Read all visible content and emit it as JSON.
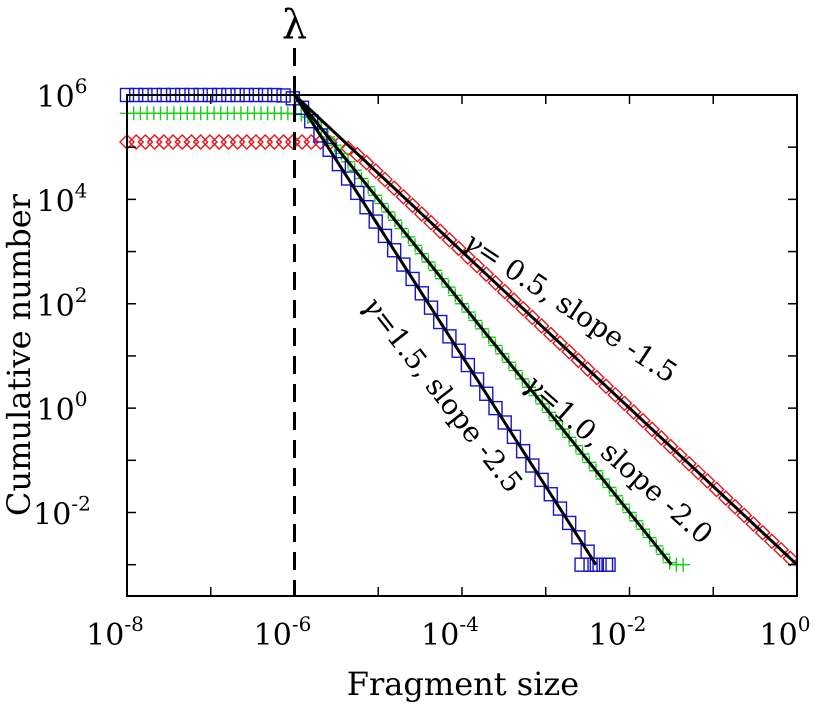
{
  "chart_data": {
    "type": "scatter",
    "xscale": "log",
    "yscale": "log",
    "xlabel": "Fragment size",
    "ylabel": "Cumulative number",
    "xlim_exp": [
      -8,
      0
    ],
    "ylim_exp": [
      -3.6,
      6
    ],
    "x_ticks": [
      {
        "base": "10",
        "exp": "-8",
        "value_exp": -8
      },
      {
        "base": "10",
        "exp": "-6",
        "value_exp": -6
      },
      {
        "base": "10",
        "exp": "-4",
        "value_exp": -4
      },
      {
        "base": "10",
        "exp": "-2",
        "value_exp": -2
      },
      {
        "base": "10",
        "exp": "0",
        "value_exp": 0
      }
    ],
    "y_ticks": [
      {
        "base": "10",
        "exp": "6",
        "value_exp": 6
      },
      {
        "base": "10",
        "exp": "4",
        "value_exp": 4
      },
      {
        "base": "10",
        "exp": "2",
        "value_exp": 2
      },
      {
        "base": "10",
        "exp": "0",
        "value_exp": 0
      },
      {
        "base": "10",
        "exp": "-2",
        "value_exp": -2
      }
    ],
    "vline": {
      "label": "λ",
      "x_exp": -6
    },
    "fit_lines": [
      {
        "name": "slope -1.5",
        "x0_exp": -6,
        "y0_exp": 6,
        "x1_exp": 0,
        "y1_exp": -3
      },
      {
        "name": "slope -2.0",
        "x0_exp": -6,
        "y0_exp": 6,
        "x1_exp": -1.5,
        "y1_exp": -3
      },
      {
        "name": "slope -2.5",
        "x0_exp": -6,
        "y0_exp": 6,
        "x1_exp": -2.4,
        "y1_exp": -3
      }
    ],
    "series": [
      {
        "name": "gamma = 0.5",
        "marker": "diamond",
        "color": "#e8141a",
        "plateau_exp": 5.1,
        "slope": -1.5,
        "x_end_exp": 0
      },
      {
        "name": "gamma = 1.0",
        "marker": "plus",
        "color": "#17d117",
        "plateau_exp": 5.65,
        "slope": -2.0,
        "x_end_exp": -1.35
      },
      {
        "name": "gamma = 1.5",
        "marker": "square",
        "color": "#1414d4",
        "plateau_exp": 6.0,
        "slope": -2.5,
        "x_end_exp": -2.25
      }
    ],
    "annotations": [
      {
        "id": "a05",
        "gamma_sym": "γ",
        "gamma_val": "= 0.5",
        "rest": ", slope -1.5",
        "color": "#e8141a"
      },
      {
        "id": "a10",
        "gamma_sym": "γ",
        "gamma_val": "=1.0",
        "rest": ", slope -2.0",
        "color": "#17d117"
      },
      {
        "id": "a15",
        "gamma_sym": "γ",
        "gamma_val": "=1.5",
        "rest": ", slope -2.5",
        "color": "#1414d4"
      }
    ]
  }
}
